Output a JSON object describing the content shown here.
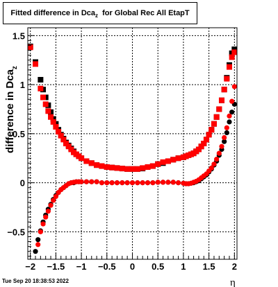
{
  "title": {
    "main": "Fitted difference in Dca",
    "sub": "z",
    "suffix": "  for Global Rec All EtapT"
  },
  "ylabel": {
    "main": "difference in Dca",
    "sub": "z"
  },
  "xlabel": "η",
  "timestamp": "Tue Sep 20 18:38:53 2022",
  "chart_data": {
    "type": "scatter",
    "xlim": [
      -2.05,
      2.05
    ],
    "ylim": [
      -0.78,
      1.58
    ],
    "xticks": [
      {
        "v": -2,
        "label": "−2"
      },
      {
        "v": -1.5,
        "label": "−1.5"
      },
      {
        "v": -1,
        "label": "−1"
      },
      {
        "v": -0.5,
        "label": "−0.5"
      },
      {
        "v": 0,
        "label": "0"
      },
      {
        "v": 0.5,
        "label": "0.5"
      },
      {
        "v": 1,
        "label": "1"
      },
      {
        "v": 1.5,
        "label": "1.5"
      },
      {
        "v": 2,
        "label": "2"
      }
    ],
    "yticks": [
      {
        "v": -0.5,
        "label": "−0.5"
      },
      {
        "v": 0,
        "label": "0"
      },
      {
        "v": 0.5,
        "label": "0.5"
      },
      {
        "v": 1,
        "label": "1"
      },
      {
        "v": 1.5,
        "label": "1.5"
      }
    ],
    "grid": true,
    "series": [
      {
        "marker": "square",
        "color": "#000000",
        "x": [
          -2.0,
          -1.9,
          -1.8,
          -1.75,
          -1.7,
          -1.65,
          -1.6,
          -1.55,
          -1.5,
          -1.45,
          -1.4,
          -1.35,
          -1.3,
          -1.25,
          -1.2,
          -1.15,
          -1.1,
          -1.05,
          -1.0,
          -0.9,
          -0.8,
          -0.7,
          -0.6,
          -0.5,
          -0.4,
          -0.3,
          -0.2,
          -0.1,
          0.0,
          0.1,
          0.2,
          0.3,
          0.4,
          0.5,
          0.6,
          0.7,
          0.8,
          0.9,
          1.0,
          1.05,
          1.1,
          1.15,
          1.2,
          1.25,
          1.3,
          1.35,
          1.4,
          1.45,
          1.5,
          1.55,
          1.6,
          1.65,
          1.7,
          1.75,
          1.8,
          1.85,
          1.9,
          1.95,
          2.0
        ],
        "y": [
          1.39,
          1.23,
          1.05,
          0.95,
          0.87,
          0.79,
          0.72,
          0.65,
          0.6,
          0.54,
          0.49,
          0.45,
          0.41,
          0.38,
          0.35,
          0.32,
          0.29,
          0.27,
          0.25,
          0.22,
          0.2,
          0.18,
          0.17,
          0.16,
          0.155,
          0.15,
          0.145,
          0.14,
          0.14,
          0.14,
          0.145,
          0.16,
          0.17,
          0.19,
          0.2,
          0.22,
          0.235,
          0.25,
          0.26,
          0.27,
          0.28,
          0.29,
          0.3,
          0.32,
          0.34,
          0.37,
          0.4,
          0.44,
          0.49,
          0.54,
          0.6,
          0.67,
          0.75,
          0.84,
          0.95,
          1.07,
          1.2,
          1.32,
          1.36
        ]
      },
      {
        "marker": "square",
        "color": "#ff0000",
        "x": [
          -2.0,
          -1.9,
          -1.8,
          -1.75,
          -1.7,
          -1.65,
          -1.6,
          -1.55,
          -1.5,
          -1.45,
          -1.4,
          -1.35,
          -1.3,
          -1.25,
          -1.2,
          -1.15,
          -1.1,
          -1.05,
          -1.0,
          -0.9,
          -0.8,
          -0.7,
          -0.6,
          -0.5,
          -0.4,
          -0.3,
          -0.2,
          -0.1,
          0.0,
          0.1,
          0.2,
          0.3,
          0.4,
          0.5,
          0.6,
          0.7,
          0.8,
          0.9,
          1.0,
          1.05,
          1.1,
          1.15,
          1.2,
          1.25,
          1.3,
          1.35,
          1.4,
          1.45,
          1.5,
          1.55,
          1.6,
          1.65,
          1.7,
          1.75,
          1.8,
          1.85,
          1.9,
          1.95,
          2.0
        ],
        "y": [
          1.38,
          1.21,
          0.96,
          0.87,
          0.8,
          0.73,
          0.67,
          0.62,
          0.57,
          0.52,
          0.48,
          0.44,
          0.4,
          0.37,
          0.34,
          0.31,
          0.29,
          0.27,
          0.25,
          0.22,
          0.2,
          0.18,
          0.17,
          0.16,
          0.155,
          0.15,
          0.145,
          0.14,
          0.14,
          0.14,
          0.15,
          0.16,
          0.17,
          0.19,
          0.21,
          0.22,
          0.235,
          0.25,
          0.26,
          0.27,
          0.28,
          0.29,
          0.3,
          0.32,
          0.34,
          0.37,
          0.4,
          0.44,
          0.49,
          0.54,
          0.6,
          0.67,
          0.75,
          0.84,
          0.95,
          1.06,
          1.18,
          1.28,
          1.33
        ]
      },
      {
        "marker": "circle",
        "color": "#000000",
        "x": [
          -1.9,
          -1.85,
          -1.8,
          -1.75,
          -1.7,
          -1.65,
          -1.6,
          -1.55,
          -1.5,
          -1.45,
          -1.4,
          -1.35,
          -1.3,
          -1.25,
          -1.2,
          -1.15,
          -1.1,
          -1.05,
          -1.0,
          -0.9,
          -0.8,
          -0.7,
          -0.6,
          -0.5,
          -0.4,
          -0.3,
          -0.2,
          -0.1,
          0.0,
          0.1,
          0.2,
          0.3,
          0.4,
          0.5,
          0.6,
          0.7,
          0.8,
          0.9,
          1.0,
          1.05,
          1.1,
          1.15,
          1.2,
          1.25,
          1.3,
          1.35,
          1.4,
          1.45,
          1.5,
          1.55,
          1.6,
          1.65,
          1.7,
          1.75,
          1.8,
          1.85,
          1.9,
          1.95,
          2.0
        ],
        "y": [
          -0.7,
          -0.58,
          -0.49,
          -0.4,
          -0.33,
          -0.27,
          -0.22,
          -0.17,
          -0.13,
          -0.1,
          -0.07,
          -0.05,
          -0.03,
          -0.01,
          0.0,
          0.0,
          0.01,
          0.01,
          0.01,
          0.01,
          0.01,
          0.01,
          0.0,
          0.0,
          0.0,
          0.0,
          0.0,
          0.0,
          0.0,
          0.0,
          0.0,
          0.0,
          0.0,
          0.005,
          0.005,
          0.005,
          0.005,
          0.0,
          -0.005,
          -0.01,
          -0.01,
          -0.005,
          0.0,
          0.01,
          0.02,
          0.04,
          0.06,
          0.08,
          0.11,
          0.14,
          0.18,
          0.22,
          0.28,
          0.34,
          0.42,
          0.51,
          0.62,
          0.72,
          0.8
        ]
      },
      {
        "marker": "circle",
        "color": "#ff0000",
        "x": [
          -1.85,
          -1.8,
          -1.75,
          -1.7,
          -1.65,
          -1.6,
          -1.55,
          -1.5,
          -1.45,
          -1.4,
          -1.35,
          -1.3,
          -1.25,
          -1.2,
          -1.15,
          -1.1,
          -1.05,
          -1.0,
          -0.9,
          -0.8,
          -0.7,
          -0.6,
          -0.5,
          -0.4,
          -0.3,
          -0.2,
          -0.1,
          0.0,
          0.1,
          0.2,
          0.3,
          0.4,
          0.5,
          0.6,
          0.7,
          0.8,
          0.9,
          1.0,
          1.05,
          1.1,
          1.15,
          1.2,
          1.25,
          1.3,
          1.35,
          1.4,
          1.45,
          1.5,
          1.55,
          1.6,
          1.65,
          1.7,
          1.75,
          1.8,
          1.85,
          1.9,
          1.95,
          2.0
        ],
        "y": [
          -0.63,
          -0.5,
          -0.42,
          -0.35,
          -0.29,
          -0.23,
          -0.18,
          -0.14,
          -0.1,
          -0.07,
          -0.05,
          -0.03,
          -0.01,
          0.0,
          0.005,
          0.01,
          0.01,
          0.01,
          0.01,
          0.01,
          0.01,
          0.0,
          0.0,
          0.0,
          0.0,
          0.0,
          0.0,
          0.0,
          0.0,
          0.0,
          0.0,
          0.0,
          0.005,
          0.005,
          0.005,
          0.005,
          0.0,
          -0.005,
          -0.01,
          -0.01,
          -0.005,
          0.005,
          0.015,
          0.03,
          0.05,
          0.07,
          0.09,
          0.12,
          0.15,
          0.19,
          0.24,
          0.3,
          0.37,
          0.46,
          0.56,
          0.68,
          0.83,
          0.98
        ]
      }
    ]
  }
}
